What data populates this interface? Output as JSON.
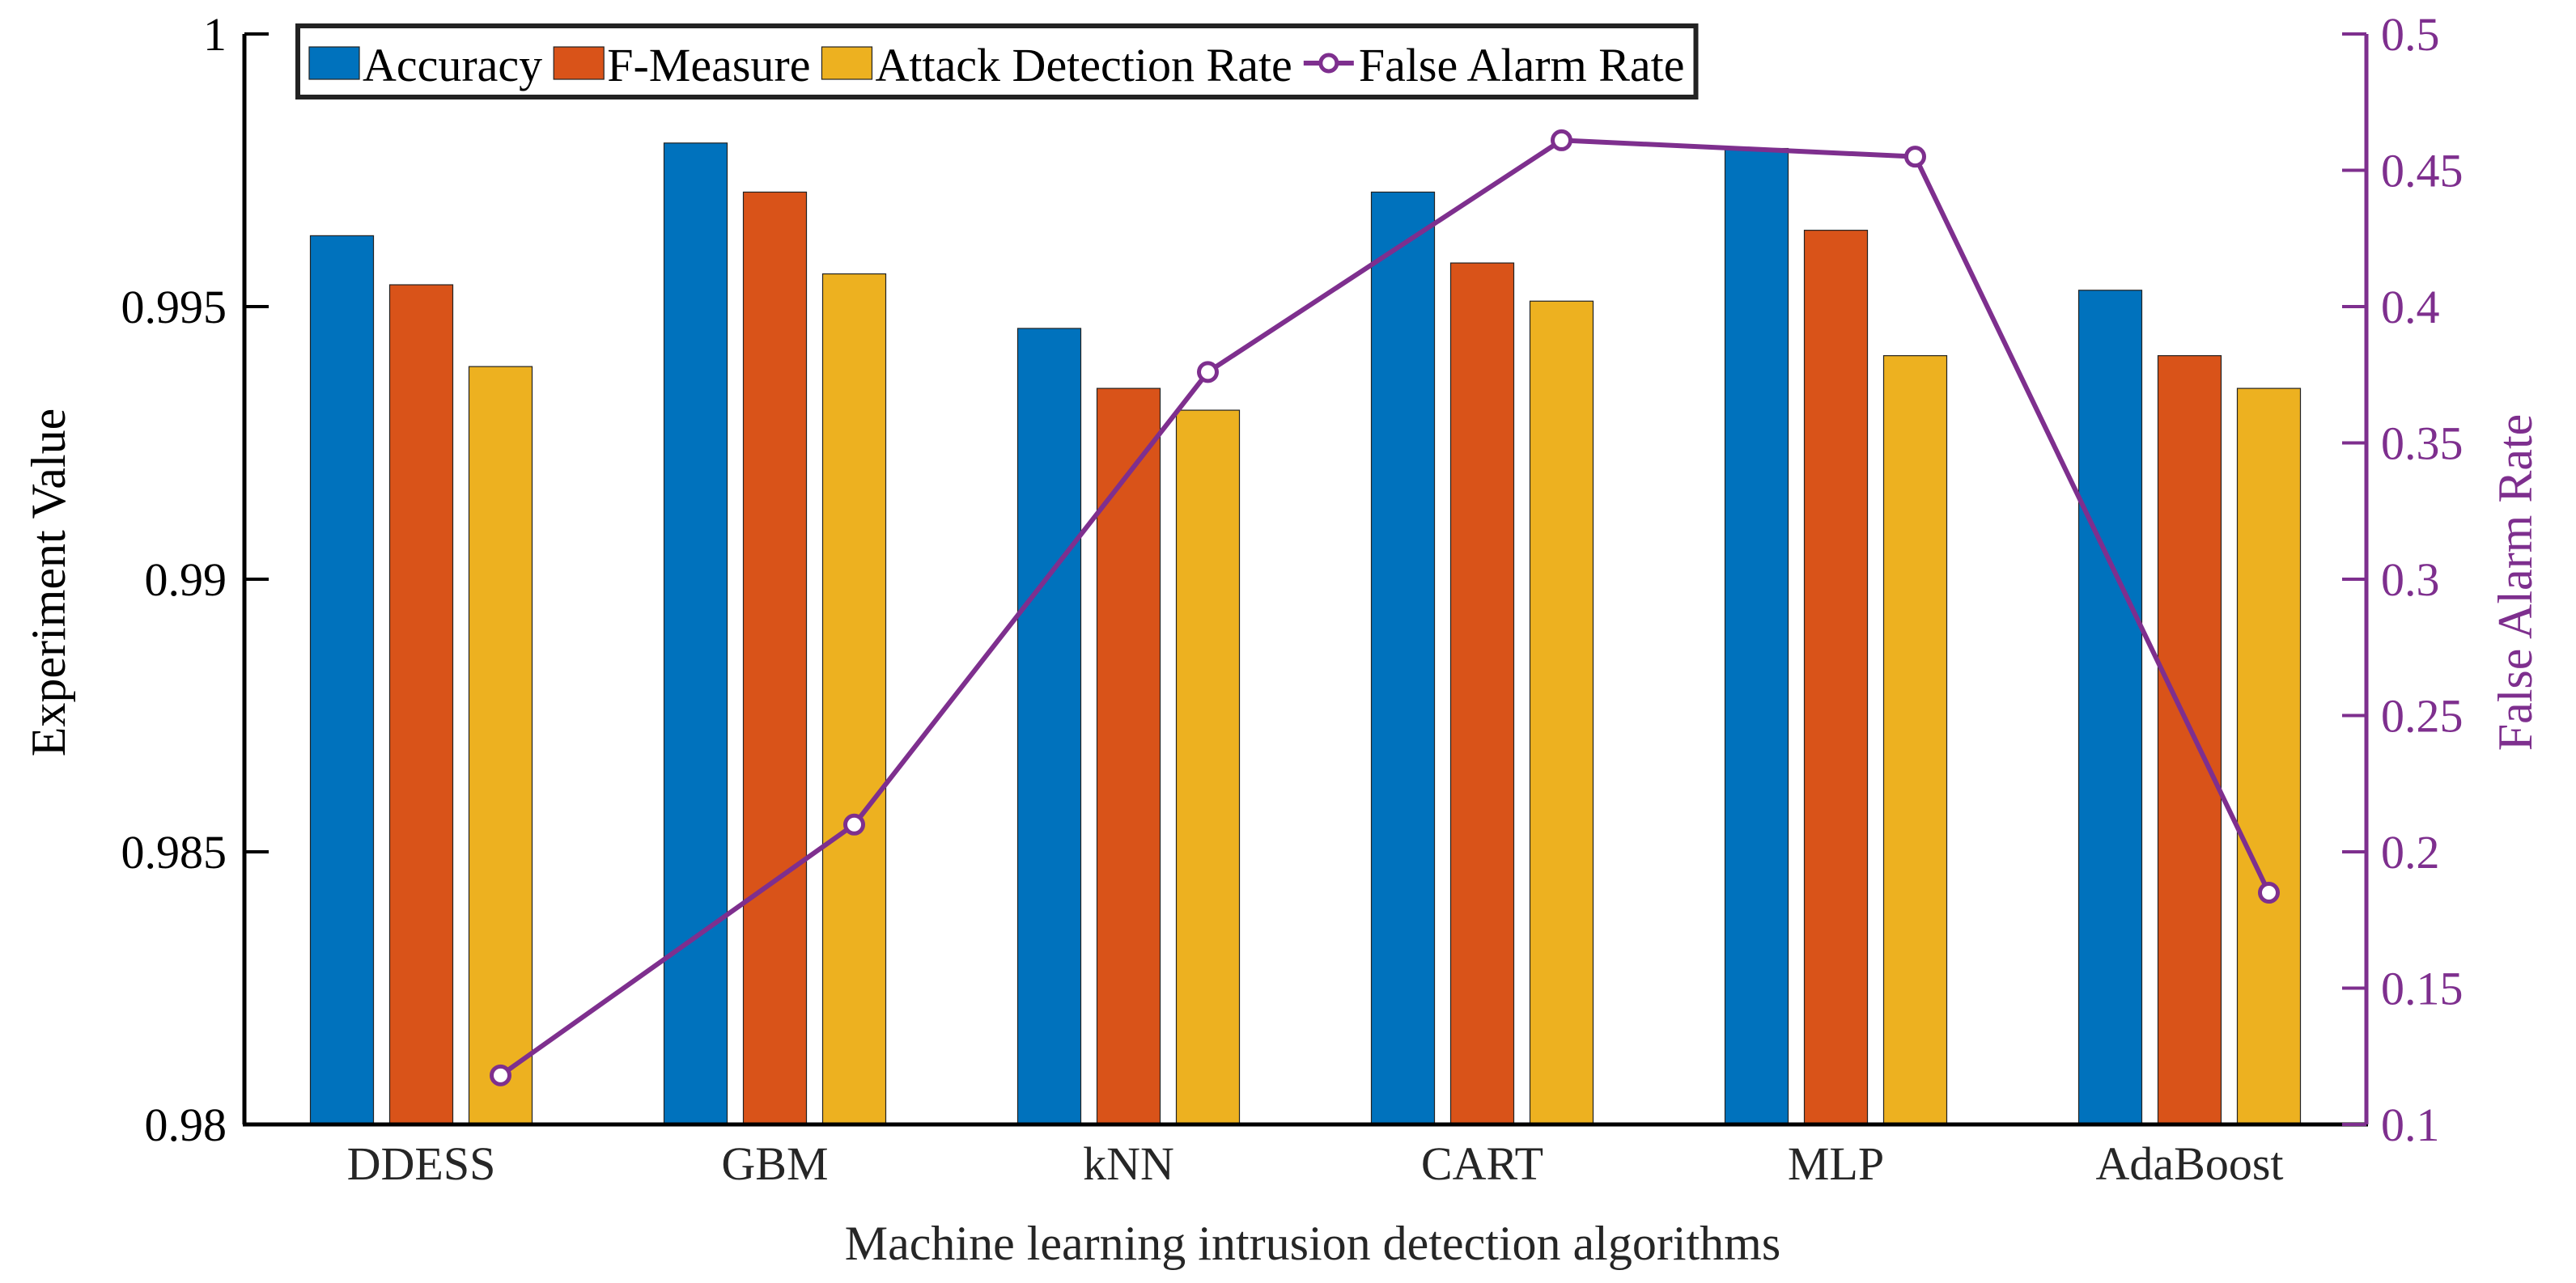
{
  "chart_data": {
    "type": "bar",
    "categories": [
      "DDESS",
      "GBM",
      "kNN",
      "CART",
      "MLP",
      "AdaBoost"
    ],
    "xlabel": "Machine learning intrusion detection algorithms",
    "ylabel": "Experiment Value",
    "ylabel_right": "False Alarm Rate",
    "ylim": [
      0.98,
      1
    ],
    "ylim_right": [
      0.1,
      0.5
    ],
    "yticks": [
      "0.98",
      "0.985",
      "0.99",
      "0.995",
      "1"
    ],
    "yticks_right": [
      "0.1",
      "0.15",
      "0.2",
      "0.25",
      "0.3",
      "0.35",
      "0.4",
      "0.45",
      "0.5"
    ],
    "series": [
      {
        "name": "Accuracy",
        "color": "#0072BD",
        "values": [
          0.9963,
          0.998,
          0.9946,
          0.9971,
          0.9979,
          0.9953
        ]
      },
      {
        "name": "F-Measure",
        "color": "#D95319",
        "values": [
          0.9954,
          0.9971,
          0.9935,
          0.9958,
          0.9964,
          0.9941
        ]
      },
      {
        "name": "Attack Detection Rate",
        "color": "#EDB120",
        "values": [
          0.9939,
          0.9956,
          0.9931,
          0.9951,
          0.9941,
          0.9935
        ]
      }
    ],
    "line_series": {
      "name": "False Alarm Rate",
      "color": "#7E2F8E",
      "axis": "right",
      "values": [
        0.118,
        0.21,
        0.376,
        0.461,
        0.455,
        0.185
      ]
    },
    "legend": "top-left inside"
  }
}
